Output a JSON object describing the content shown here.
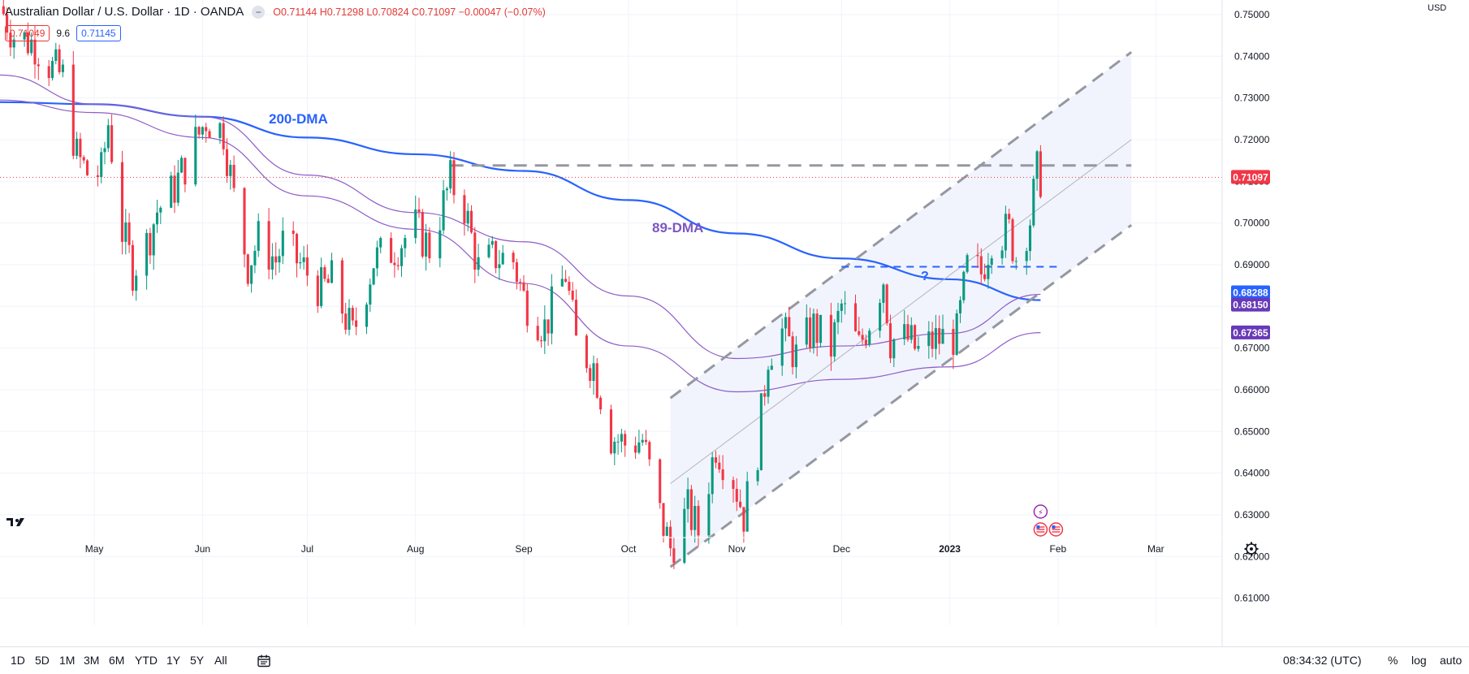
{
  "header": {
    "title": "Australian Dollar / U.S. Dollar · 1D · OANDA",
    "open": "O0.71144",
    "high": "H0.71298",
    "low": "L0.70824",
    "close": "C0.71097",
    "change": "−0.00047 (−0.07%)",
    "bid": "0.71049",
    "spread": "9.6",
    "ask": "0.71145"
  },
  "currency_label": "USD",
  "annotations": {
    "ma200": "200-DMA",
    "ma89": "89-DMA",
    "question": "?"
  },
  "colors": {
    "up": "#089981",
    "down": "#f23645",
    "ma200": "#2962ff",
    "ma89": "#7e57c2",
    "channel": "#9598a1",
    "fill": "#eef2fc",
    "price_tag": "#f23645",
    "ma_tag": "#673ab7"
  },
  "price_tags": [
    {
      "value": "0.71097",
      "price": 0.71097,
      "color": "#f23645"
    },
    {
      "value": "0.68288",
      "price": 0.68288,
      "color": "#2962ff"
    },
    {
      "value": "0.68150",
      "price": 0.6815,
      "color": "#673ab7"
    },
    {
      "value": "0.67365",
      "price": 0.67365,
      "color": "#673ab7"
    }
  ],
  "toolbar": {
    "ranges": [
      "1D",
      "5D",
      "1M",
      "3M",
      "6M",
      "YTD",
      "1Y",
      "5Y",
      "All"
    ],
    "time": "08:34:32 (UTC)",
    "percent": "%",
    "log": "log",
    "auto": "auto"
  },
  "events": [
    "lightning-event-icon",
    "us-flag-event-icon",
    "us-flag-event-icon"
  ],
  "chart_data": {
    "type": "candlestick",
    "title": "Australian Dollar / U.S. Dollar · 1D · OANDA",
    "xlabel": "",
    "ylabel": "",
    "ylim": [
      0.6035,
      0.7535
    ],
    "yticks": [
      0.61,
      0.62,
      0.63,
      0.64,
      0.65,
      0.66,
      0.67,
      0.68,
      0.69,
      0.7,
      0.71,
      0.72,
      0.73,
      0.74,
      0.75
    ],
    "ytick_labels": [
      "0.61000",
      "0.62000",
      "0.63000",
      "0.64000",
      "0.65000",
      "0.66000",
      "0.67000",
      "0.68000",
      "0.69000",
      "0.70000",
      "0.71000",
      "0.72000",
      "0.73000",
      "0.74000",
      "0.75000"
    ],
    "x_ticks": [
      {
        "label": "May",
        "date": "2022-05-01"
      },
      {
        "label": "Jun",
        "date": "2022-06-01"
      },
      {
        "label": "Jul",
        "date": "2022-07-01"
      },
      {
        "label": "Aug",
        "date": "2022-08-01"
      },
      {
        "label": "Sep",
        "date": "2022-09-01"
      },
      {
        "label": "Oct",
        "date": "2022-10-01"
      },
      {
        "label": "Nov",
        "date": "2022-11-01"
      },
      {
        "label": "Dec",
        "date": "2022-12-01"
      },
      {
        "label": "2023",
        "date": "2023-01-01"
      },
      {
        "label": "Feb",
        "date": "2023-02-01"
      },
      {
        "label": "Mar",
        "date": "2023-03-01"
      }
    ],
    "x_range": [
      "2022-04-04",
      "2023-03-20"
    ],
    "close_path": [
      [
        "2022-04-04",
        0.752
      ],
      [
        "2022-04-08",
        0.745
      ],
      [
        "2022-04-14",
        0.743
      ],
      [
        "2022-04-19",
        0.737
      ],
      [
        "2022-04-22",
        0.735
      ],
      [
        "2022-04-26",
        0.716
      ],
      [
        "2022-04-29",
        0.712
      ],
      [
        "2022-05-03",
        0.712
      ],
      [
        "2022-05-05",
        0.724
      ],
      [
        "2022-05-09",
        0.698
      ],
      [
        "2022-05-12",
        0.689
      ],
      [
        "2022-05-16",
        0.695
      ],
      [
        "2022-05-19",
        0.703
      ],
      [
        "2022-05-23",
        0.707
      ],
      [
        "2022-05-26",
        0.712
      ],
      [
        "2022-06-02",
        0.725
      ],
      [
        "2022-06-07",
        0.722
      ],
      [
        "2022-06-10",
        0.706
      ],
      [
        "2022-06-14",
        0.69
      ],
      [
        "2022-06-17",
        0.696
      ],
      [
        "2022-06-22",
        0.691
      ],
      [
        "2022-06-24",
        0.695
      ],
      [
        "2022-06-30",
        0.689
      ],
      [
        "2022-07-05",
        0.684
      ],
      [
        "2022-07-08",
        0.686
      ],
      [
        "2022-07-14",
        0.673
      ],
      [
        "2022-07-20",
        0.691
      ],
      [
        "2022-07-26",
        0.694
      ],
      [
        "2022-08-01",
        0.699
      ],
      [
        "2022-08-05",
        0.694
      ],
      [
        "2022-08-11",
        0.71
      ],
      [
        "2022-08-15",
        0.704
      ],
      [
        "2022-08-19",
        0.689
      ],
      [
        "2022-08-24",
        0.692
      ],
      [
        "2022-08-29",
        0.691
      ],
      [
        "2022-09-01",
        0.682
      ],
      [
        "2022-09-07",
        0.675
      ],
      [
        "2022-09-13",
        0.688
      ],
      [
        "2022-09-16",
        0.671
      ],
      [
        "2022-09-21",
        0.666
      ],
      [
        "2022-09-26",
        0.649
      ],
      [
        "2022-09-30",
        0.647
      ],
      [
        "2022-10-05",
        0.648
      ],
      [
        "2022-10-10",
        0.63
      ],
      [
        "2022-10-13",
        0.622
      ],
      [
        "2022-10-18",
        0.631
      ],
      [
        "2022-10-21",
        0.626
      ],
      [
        "2022-10-26",
        0.647
      ],
      [
        "2022-10-31",
        0.639
      ],
      [
        "2022-11-03",
        0.63
      ],
      [
        "2022-11-07",
        0.646
      ],
      [
        "2022-11-10",
        0.669
      ],
      [
        "2022-11-14",
        0.674
      ],
      [
        "2022-11-18",
        0.668
      ],
      [
        "2022-11-23",
        0.675
      ],
      [
        "2022-11-28",
        0.67
      ],
      [
        "2022-12-01",
        0.68
      ],
      [
        "2022-12-06",
        0.67
      ],
      [
        "2022-12-09",
        0.677
      ],
      [
        "2022-12-13",
        0.687
      ],
      [
        "2022-12-15",
        0.672
      ],
      [
        "2022-12-20",
        0.672
      ],
      [
        "2022-12-23",
        0.669
      ],
      [
        "2022-12-28",
        0.672
      ],
      [
        "2023-01-03",
        0.673
      ],
      [
        "2023-01-06",
        0.689
      ],
      [
        "2023-01-10",
        0.688
      ],
      [
        "2023-01-13",
        0.697
      ],
      [
        "2023-01-18",
        0.698
      ],
      [
        "2023-01-20",
        0.692
      ],
      [
        "2023-01-24",
        0.701
      ],
      [
        "2023-01-26",
        0.712
      ],
      [
        "2023-01-27",
        0.711
      ]
    ],
    "series": [
      {
        "name": "200-DMA",
        "points": [
          [
            "2022-04-04",
            0.729
          ],
          [
            "2022-05-01",
            0.7285
          ],
          [
            "2022-06-01",
            0.7255
          ],
          [
            "2022-07-01",
            0.7205
          ],
          [
            "2022-08-01",
            0.7165
          ],
          [
            "2022-09-01",
            0.7125
          ],
          [
            "2022-10-01",
            0.7055
          ],
          [
            "2022-11-01",
            0.6975
          ],
          [
            "2022-12-01",
            0.6915
          ],
          [
            "2023-01-01",
            0.6865
          ],
          [
            "2023-01-27",
            0.6815
          ]
        ]
      },
      {
        "name": "89-DMA",
        "points": [
          [
            "2022-04-04",
            0.7355
          ],
          [
            "2022-05-01",
            0.7285
          ],
          [
            "2022-06-01",
            0.7255
          ],
          [
            "2022-07-01",
            0.7115
          ],
          [
            "2022-08-01",
            0.7025
          ],
          [
            "2022-09-01",
            0.6955
          ],
          [
            "2022-10-01",
            0.6825
          ],
          [
            "2022-11-01",
            0.6675
          ],
          [
            "2022-12-01",
            0.6705
          ],
          [
            "2023-01-01",
            0.6735
          ],
          [
            "2023-01-27",
            0.6829
          ]
        ]
      },
      {
        "name": "",
        "points": [
          [
            "2022-04-04",
            0.7295
          ],
          [
            "2022-05-01",
            0.7265
          ],
          [
            "2022-06-01",
            0.7205
          ],
          [
            "2022-07-01",
            0.7065
          ],
          [
            "2022-08-01",
            0.6985
          ],
          [
            "2022-09-01",
            0.6855
          ],
          [
            "2022-10-01",
            0.6705
          ],
          [
            "2022-11-01",
            0.6595
          ],
          [
            "2022-12-01",
            0.6625
          ],
          [
            "2023-01-01",
            0.6655
          ],
          [
            "2023-01-27",
            0.6737
          ]
        ]
      }
    ],
    "channel": {
      "upper": [
        [
          "2022-10-13",
          0.658
        ],
        [
          "2023-02-22",
          0.741
        ]
      ],
      "mid": [
        [
          "2022-10-13",
          0.6375
        ],
        [
          "2023-02-22",
          0.72
        ]
      ],
      "lower": [
        [
          "2022-10-13",
          0.6175
        ],
        [
          "2023-02-22",
          0.6995
        ]
      ]
    },
    "resistance": [
      [
        "2022-08-11",
        0.7138
      ],
      [
        "2023-02-22",
        0.7138
      ]
    ],
    "support": [
      [
        "2022-12-01",
        0.6895
      ],
      [
        "2023-02-01",
        0.6895
      ]
    ],
    "last_price": 0.71097,
    "grid": true
  }
}
